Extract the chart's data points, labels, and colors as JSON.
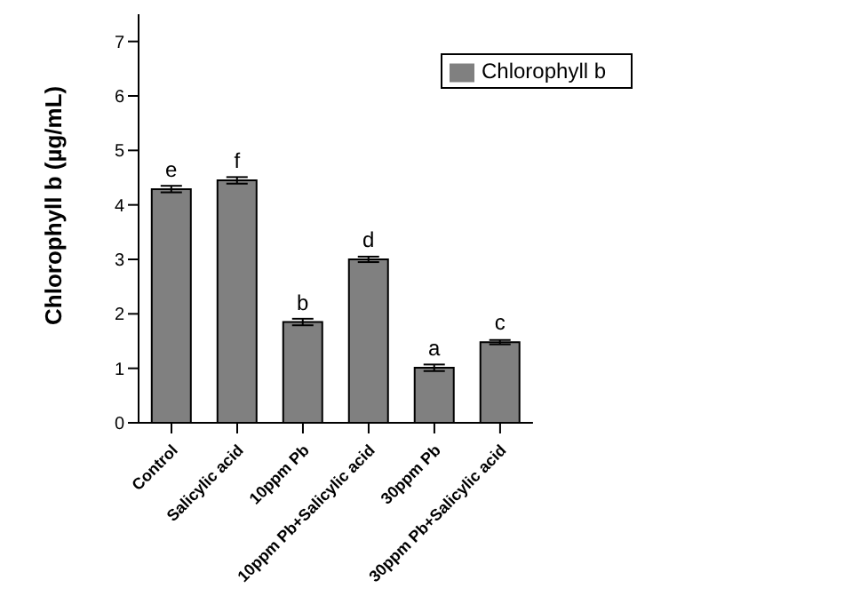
{
  "chart_data": {
    "type": "bar",
    "ylabel": "Chlorophyll b (µg/mL)",
    "categories": [
      "Control",
      "Salicylic acid",
      "10ppm Pb",
      "10ppm Pb+Salicylic acid",
      "30ppm Pb",
      "30ppm Pb+Salicylic acid"
    ],
    "series": [
      {
        "name": "Chlorophyll b",
        "color": "#808080",
        "values": [
          4.29,
          4.45,
          1.85,
          3.0,
          1.01,
          1.48
        ],
        "errors": [
          0.06,
          0.06,
          0.06,
          0.05,
          0.06,
          0.04
        ]
      }
    ],
    "annotations": [
      "e",
      "f",
      "b",
      "d",
      "a",
      "c"
    ],
    "ylim": [
      0,
      7.5
    ],
    "yticks": [
      0,
      1,
      2,
      3,
      4,
      5,
      6,
      7
    ],
    "grid": false,
    "legend": "top right"
  }
}
